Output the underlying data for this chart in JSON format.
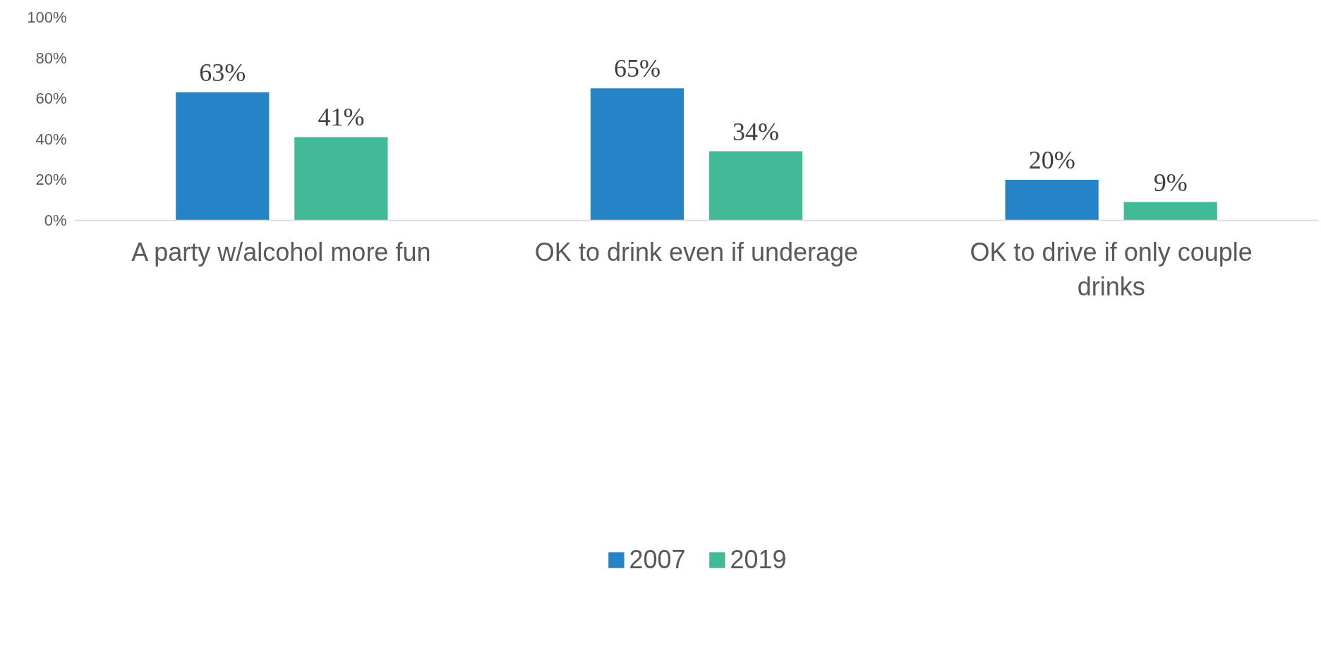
{
  "chart_data": {
    "type": "bar",
    "categories": [
      "A party w/alcohol more fun",
      "OK to drink even if underage",
      "OK to drive if only couple drinks"
    ],
    "series": [
      {
        "name": "2007",
        "color": "#2683c6",
        "values": [
          63,
          65,
          20
        ],
        "value_labels": [
          "63%",
          "65%",
          "20%"
        ]
      },
      {
        "name": "2019",
        "color": "#42ba97",
        "values": [
          41,
          34,
          9
        ],
        "value_labels": [
          "41%",
          "34%",
          "9%"
        ]
      }
    ],
    "ylim": [
      0,
      100
    ],
    "yticks": [
      {
        "value": 0,
        "label": "0%"
      },
      {
        "value": 20,
        "label": "20%"
      },
      {
        "value": 40,
        "label": "40%"
      },
      {
        "value": 60,
        "label": "60%"
      },
      {
        "value": 80,
        "label": "80%"
      },
      {
        "value": 100,
        "label": "100%"
      }
    ],
    "grid": false,
    "legend": "bottom"
  }
}
